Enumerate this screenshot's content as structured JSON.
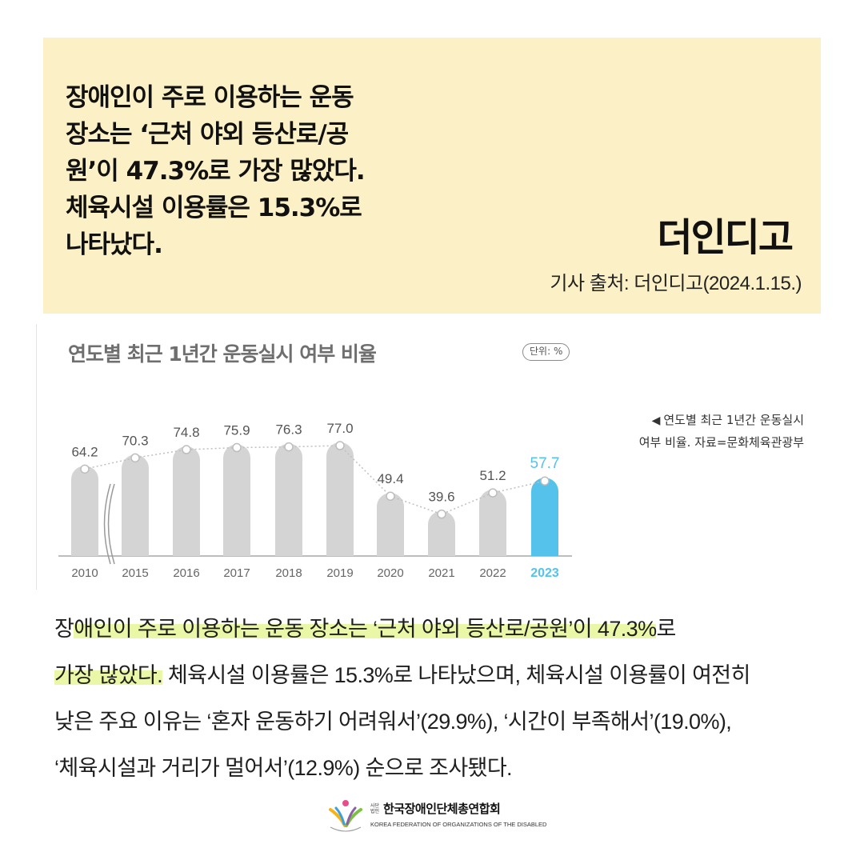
{
  "header": {
    "headline_lines": [
      "장애인이 주로 이용하는 운동",
      "장소는 ‘근처 야외 등산로/공",
      "원’이 47.3%로 가장 많았다.",
      "체육시설 이용률은 15.3%로",
      "나타났다."
    ],
    "brand": "더인디고",
    "source": "기사 출처: 더인디고(2024.1.15.)"
  },
  "chart": {
    "title": "연도별 최근 1년간 운동실시 여부 비율",
    "unit_badge": "단위: %",
    "caption_line1": "연도별 최근 1년간 운동실시",
    "caption_line2": "여부 비율. 자료=문화체육관광부",
    "caption_marker": "◀"
  },
  "chart_data": {
    "type": "bar",
    "title": "연도별 최근 1년간 운동실시 여부 비율",
    "unit": "%",
    "categories": [
      "2010",
      "2015",
      "2016",
      "2017",
      "2018",
      "2019",
      "2020",
      "2021",
      "2022",
      "2023"
    ],
    "values": [
      64.2,
      70.3,
      74.8,
      75.9,
      76.3,
      77.0,
      49.4,
      39.6,
      51.2,
      57.7
    ],
    "highlight_category": "2023",
    "axis_break_after": "2010",
    "bar_color": "#d4d4d4",
    "highlight_color": "#55c2ec",
    "label_color": "#555555",
    "ylim": [
      0,
      80
    ],
    "grid": false,
    "trend_line": true
  },
  "body": {
    "line1_hl": "애인이 주로 이용하는 운동 장소는 ‘근처 야외 등산로/공원’이 47.3%",
    "line1_pre": "장",
    "line1_post": "로",
    "line2_hl": "가장 많았다.",
    "line2_post": " 체육시설 이용률은 15.3%로 나타났으며, 체육시설 이용률이 여전히",
    "line3": "낮은 주요 이유는 ‘혼자 운동하기 어려워서’(29.9%), ‘시간이 부족해서’(19.0%),",
    "line4": "‘체육시설과 거리가 멀어서’(12.9%) 순으로 조사됐다."
  },
  "footer": {
    "org_prefix": "사단 법인",
    "org_name": "한국장애인단체총연합회",
    "org_english": "KOREA FEDERATION OF ORGANIZATIONS OF THE DISABLED",
    "logo_colors": [
      "#e94c8a",
      "#f6b21a",
      "#7cc242",
      "#3aa1dc",
      "#8e5ea8"
    ]
  }
}
